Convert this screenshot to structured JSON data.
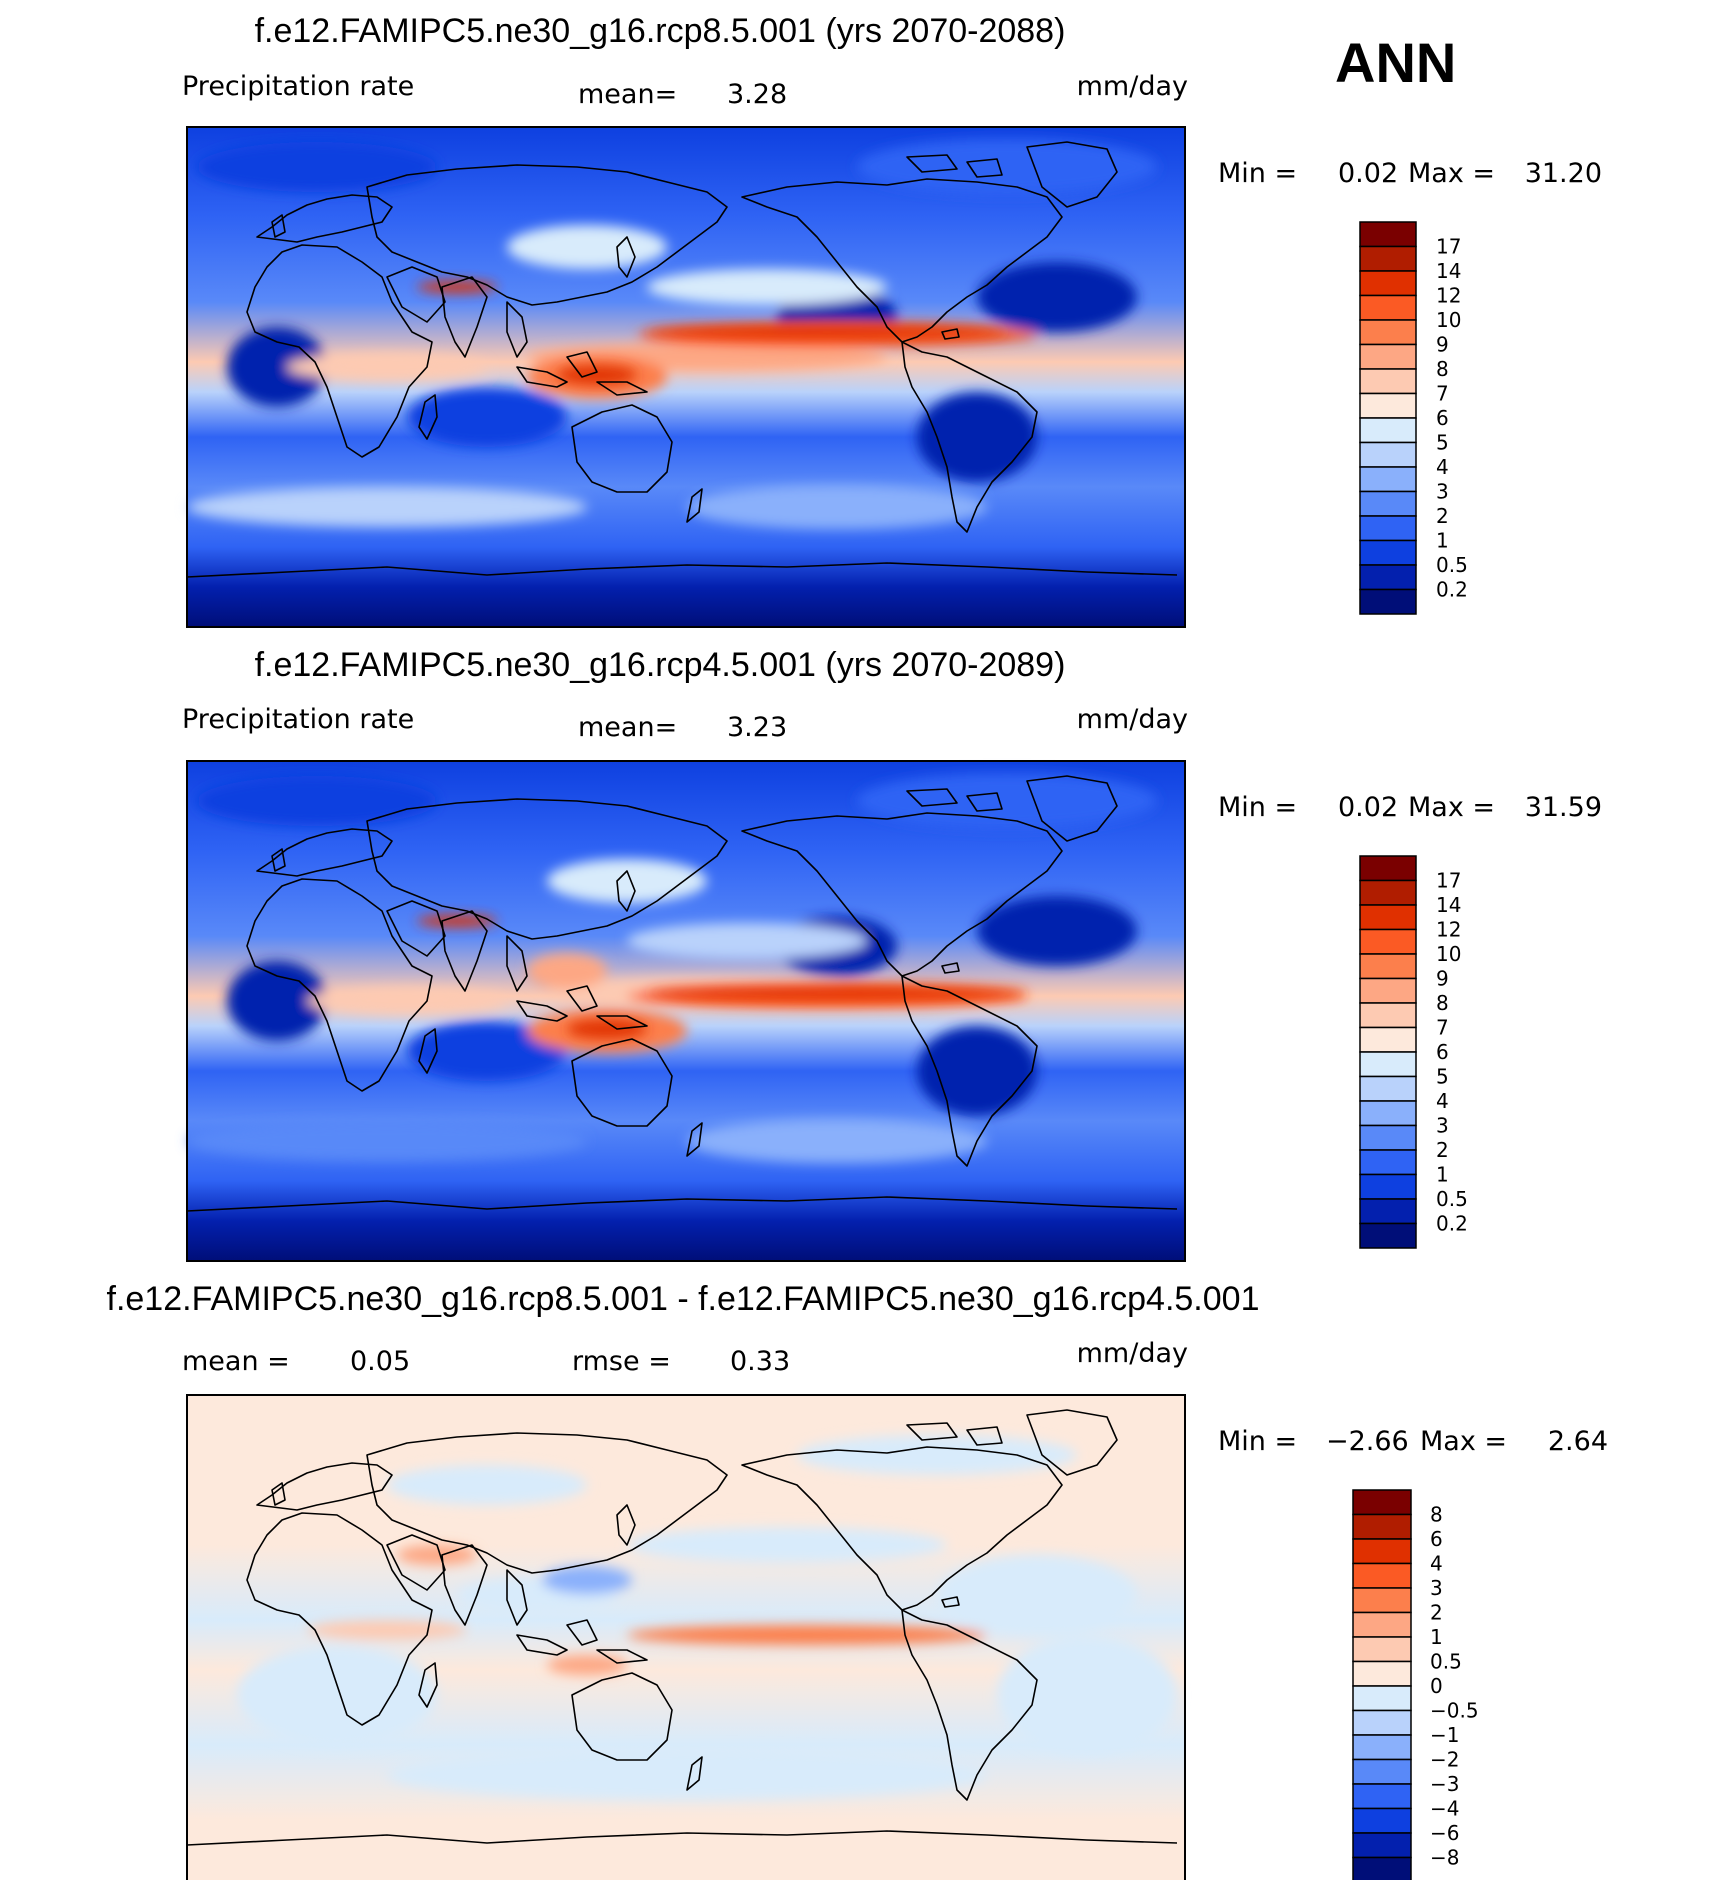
{
  "season": "ANN",
  "panels": [
    {
      "title": "f.e12.FAMIPC5.ne30_g16.rcp8.5.001 (yrs 2070-2088)",
      "left_label": "Precipitation  rate",
      "mean_label": "mean=",
      "mean_value": "3.28",
      "units": "mm/day",
      "min_label": "Min  =",
      "min_value": "0.02",
      "max_label": "Max  =",
      "max_value": "31.20"
    },
    {
      "title": "f.e12.FAMIPC5.ne30_g16.rcp4.5.001 (yrs 2070-2089)",
      "left_label": "Precipitation  rate",
      "mean_label": "mean=",
      "mean_value": "3.23",
      "units": "mm/day",
      "min_label": "Min  =",
      "min_value": "0.02",
      "max_label": "Max  =",
      "max_value": "31.59"
    },
    {
      "title": "f.e12.FAMIPC5.ne30_g16.rcp8.5.001 - f.e12.FAMIPC5.ne30_g16.rcp4.5.001",
      "left_label": "mean  =",
      "mean_label": "rmse  =",
      "left_value": "0.05",
      "mean_value": "0.33",
      "units": "mm/day",
      "min_label": "Min  =",
      "min_value": "−2.66",
      "max_label": "Max  =",
      "max_value": "2.64"
    }
  ],
  "colorbar_precip": {
    "labels": [
      "17",
      "14",
      "12",
      "10",
      "9",
      "8",
      "7",
      "6",
      "5",
      "4",
      "3",
      "2",
      "1",
      "0.5",
      "0.2"
    ],
    "colors": [
      "#7a0000",
      "#b01d00",
      "#e03000",
      "#fb5a24",
      "#fc7f4c",
      "#fda784",
      "#fdcab2",
      "#fde9dc",
      "#d8ebfb",
      "#b9d2fb",
      "#8ab0fb",
      "#5989f8",
      "#2f63f4",
      "#0e40e0",
      "#0320ae",
      "#000e78"
    ]
  },
  "colorbar_diff": {
    "labels": [
      "8",
      "6",
      "4",
      "3",
      "2",
      "1",
      "0.5",
      "0",
      "−0.5",
      "−1",
      "−2",
      "−3",
      "−4",
      "−6",
      "−8"
    ],
    "colors": [
      "#7a0000",
      "#b01d00",
      "#e03000",
      "#fb5a24",
      "#fc7f4c",
      "#fda784",
      "#fdcab2",
      "#fde9dc",
      "#d8ebfb",
      "#b9d2fb",
      "#8ab0fb",
      "#5989f8",
      "#2f63f4",
      "#0e40e0",
      "#0320ae",
      "#000e78"
    ]
  }
}
